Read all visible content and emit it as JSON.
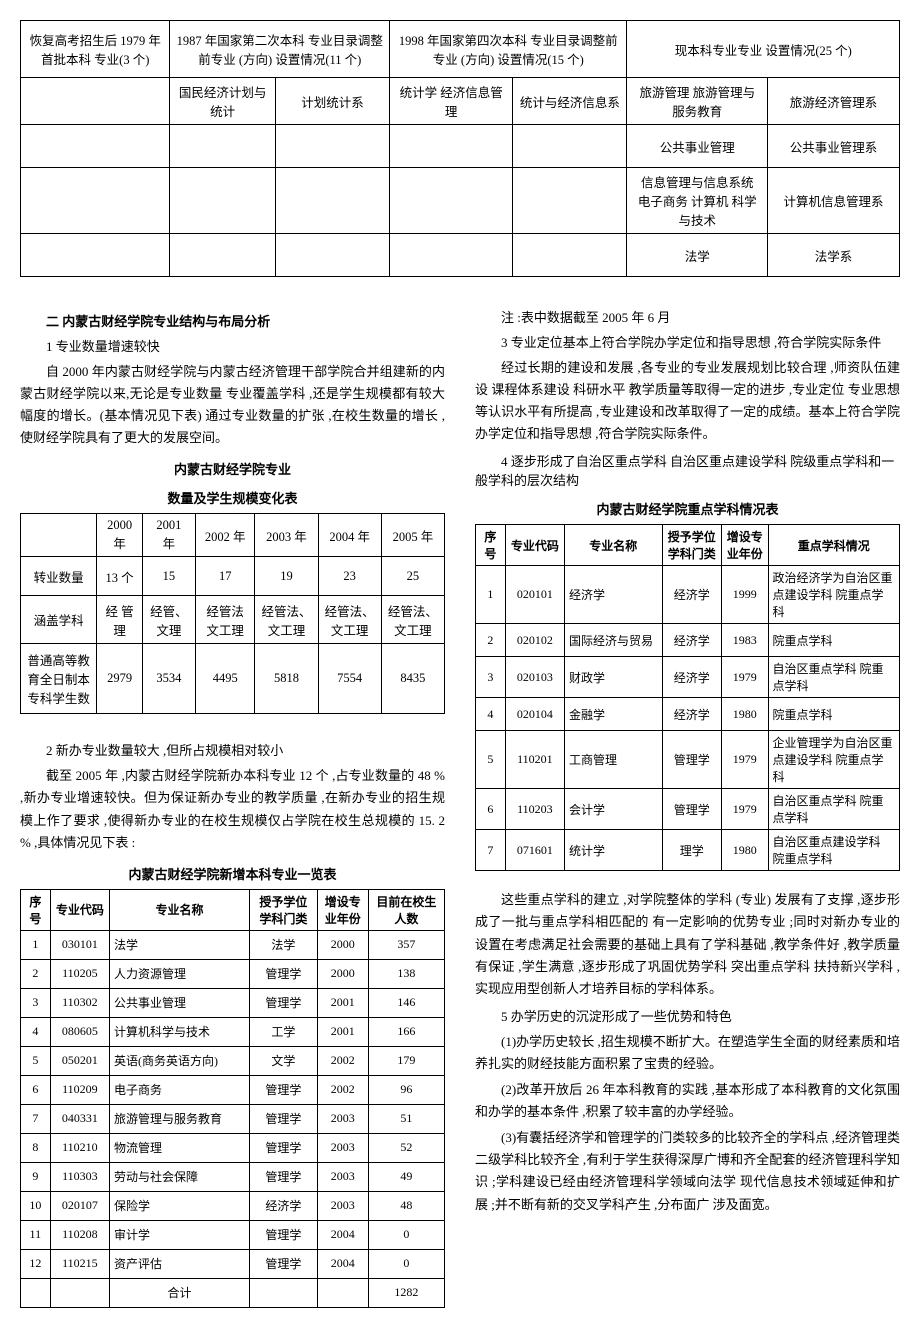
{
  "top_table": {
    "headers": [
      "恢复高考招生后\n1979 年首批本科\n专业(3 个)",
      "1987 年国家第二次本科\n专业目录调整前专业\n(方向) 设置情况(11 个)",
      "1998 年国家第四次本科\n专业目录调整前专业\n(方向) 设置情况(15 个)",
      "现本科专业专业\n设置情况(25 个)"
    ],
    "rows": [
      [
        "",
        "国民经济计划与统计",
        "计划统计系",
        "统计学 经济信息管理",
        "统计与经济信息系",
        "旅游管理 旅游管理与服务教育",
        "旅游经济管理系"
      ],
      [
        "",
        "",
        "",
        "",
        "",
        "公共事业管理",
        "公共事业管理系"
      ],
      [
        "",
        "",
        "",
        "",
        "",
        "信息管理与信息系统\n电子商务 计算机\n科学与技术",
        "计算机信息管理系"
      ],
      [
        "",
        "",
        "",
        "",
        "",
        "法学",
        "法学系"
      ]
    ]
  },
  "headings": {
    "h2": "二  内蒙古财经学院专业结构与布局分析",
    "s1": "1 专业数量增速较快",
    "p1": "自 2000 年内蒙古财经学院与内蒙古经济管理干部学院合并组建新的内蒙古财经学院以来,无论是专业数量 专业覆盖学科 ,还是学生规模都有较大幅度的增长。(基本情况见下表) 通过专业数量的扩张 ,在校生数量的增长 ,使财经学院具有了更大的发展空间。",
    "t2_title1": "内蒙古财经学院专业",
    "t2_title2": "数量及学生规模变化表",
    "s2": "2 新办专业数量较大 ,但所占规模相对较小",
    "p2": "截至 2005 年 ,内蒙古财经学院新办本科专业 12 个 ,占专业数量的 48 % ,新办专业增速较快。但为保证新办专业的教学质量 ,在新办专业的招生规模上作了要求 ,使得新办专业的在校生规模仅占学院在校生总规模的 15. 2 % ,具体情况见下表 :",
    "t3_title": "内蒙古财经学院新增本科专业一览表",
    "note": "注 :表中数据截至 2005 年 6 月",
    "s3": "3 专业定位基本上符合学院办学定位和指导思想 ,符合学院实际条件",
    "p3": "经过长期的建设和发展 ,各专业的专业发展规划比较合理 ,师资队伍建设 课程体系建设 科研水平 教学质量等取得一定的进步 ,专业定位 专业思想等认识水平有所提高 ,专业建设和改革取得了一定的成绩。基本上符合学院办学定位和指导思想 ,符合学院实际条件。",
    "s4": "4 逐步形成了自治区重点学科 自治区重点建设学科 院级重点学科和一般学科的层次结构",
    "t4_title": "内蒙古财经学院重点学科情况表",
    "p4": "这些重点学科的建立 ,对学院整体的学科 (专业) 发展有了支撑 ,逐步形成了一批与重点学科相匹配的 有一定影响的优势专业 ;同时对新办专业的设置在考虑满足社会需要的基础上具有了学科基础 ,教学条件好 ,教学质量有保证 ,学生满意 ,逐步形成了巩固优势学科 突出重点学科 扶持新兴学科 ,实现应用型创新人才培养目标的学科体系。",
    "s5": "5 办学历史的沉淀形成了一些优势和特色",
    "p5a": "(1)办学历史较长 ,招生规模不断扩大。在塑造学生全面的财经素质和培养扎实的财经技能方面积累了宝贵的经验。",
    "p5b": "(2)改革开放后 26 年本科教育的实践 ,基本形成了本科教育的文化氛围和办学的基本条件 ,积累了较丰富的办学经验。",
    "p5c": "(3)有囊括经济学和管理学的门类较多的比较齐全的学科点 ,经济管理类二级学科比较齐全 ,有利于学生获得深厚广博和齐全配套的经济管理科学知识 ;学科建设已经由经济管理科学领域向法学 现代信息技术领域延伸和扩展 ;并不断有新的交叉学科产生 ,分布面广 涉及面宽。"
  },
  "table2": {
    "years": [
      "",
      "2000 年",
      "2001 年",
      "2002 年",
      "2003 年",
      "2004 年",
      "2005 年"
    ],
    "r1": [
      "转业数量",
      "13 个",
      "15",
      "17",
      "19",
      "23",
      "25"
    ],
    "r2": [
      "涵盖学科",
      "经 管 理",
      "经管、文理",
      "经管法\n文工理",
      "经管法、文工理",
      "经管法、文工理",
      "经管法、文工理"
    ],
    "r3": [
      "普通高等教育全日制本专科学生数",
      "2979",
      "3534",
      "4495",
      "5818",
      "7554",
      "8435"
    ]
  },
  "table3": {
    "head": [
      "序号",
      "专业代码",
      "专业名称",
      "授予学位学科门类",
      "增设专业年份",
      "目前在校生人数"
    ],
    "rows": [
      [
        "1",
        "030101",
        "法学",
        "法学",
        "2000",
        "357"
      ],
      [
        "2",
        "110205",
        "人力资源管理",
        "管理学",
        "2000",
        "138"
      ],
      [
        "3",
        "110302",
        "公共事业管理",
        "管理学",
        "2001",
        "146"
      ],
      [
        "4",
        "080605",
        "计算机科学与技术",
        "工学",
        "2001",
        "166"
      ],
      [
        "5",
        "050201",
        "英语(商务英语方向)",
        "文学",
        "2002",
        "179"
      ],
      [
        "6",
        "110209",
        "电子商务",
        "管理学",
        "2002",
        "96"
      ],
      [
        "7",
        "040331",
        "旅游管理与服务教育",
        "管理学",
        "2003",
        "51"
      ],
      [
        "8",
        "110210",
        "物流管理",
        "管理学",
        "2003",
        "52"
      ],
      [
        "9",
        "110303",
        "劳动与社会保障",
        "管理学",
        "2003",
        "49"
      ],
      [
        "10",
        "020107",
        "保险学",
        "经济学",
        "2003",
        "48"
      ],
      [
        "11",
        "110208",
        "审计学",
        "管理学",
        "2004",
        "0"
      ],
      [
        "12",
        "110215",
        "资产评估",
        "管理学",
        "2004",
        "0"
      ]
    ],
    "total": [
      "",
      "",
      "合计",
      "",
      "",
      "1282"
    ]
  },
  "table4": {
    "head": [
      "序号",
      "专业代码",
      "专业名称",
      "授予学位学科门类",
      "增设专业年份",
      "重点学科情况"
    ],
    "rows": [
      [
        "1",
        "020101",
        "经济学",
        "经济学",
        "1999",
        "政治经济学为自治区重点建设学科 院重点学科"
      ],
      [
        "2",
        "020102",
        "国际经济与贸易",
        "经济学",
        "1983",
        "院重点学科"
      ],
      [
        "3",
        "020103",
        "财政学",
        "经济学",
        "1979",
        "自治区重点学科 院重点学科"
      ],
      [
        "4",
        "020104",
        "金融学",
        "经济学",
        "1980",
        "院重点学科"
      ],
      [
        "5",
        "110201",
        "工商管理",
        "管理学",
        "1979",
        "企业管理学为自治区重点建设学科 院重点学科"
      ],
      [
        "6",
        "110203",
        "会计学",
        "管理学",
        "1979",
        "自治区重点学科 院重点学科"
      ],
      [
        "7",
        "071601",
        "统计学",
        "理学",
        "1980",
        "自治区重点建设学科 院重点学科"
      ]
    ]
  }
}
